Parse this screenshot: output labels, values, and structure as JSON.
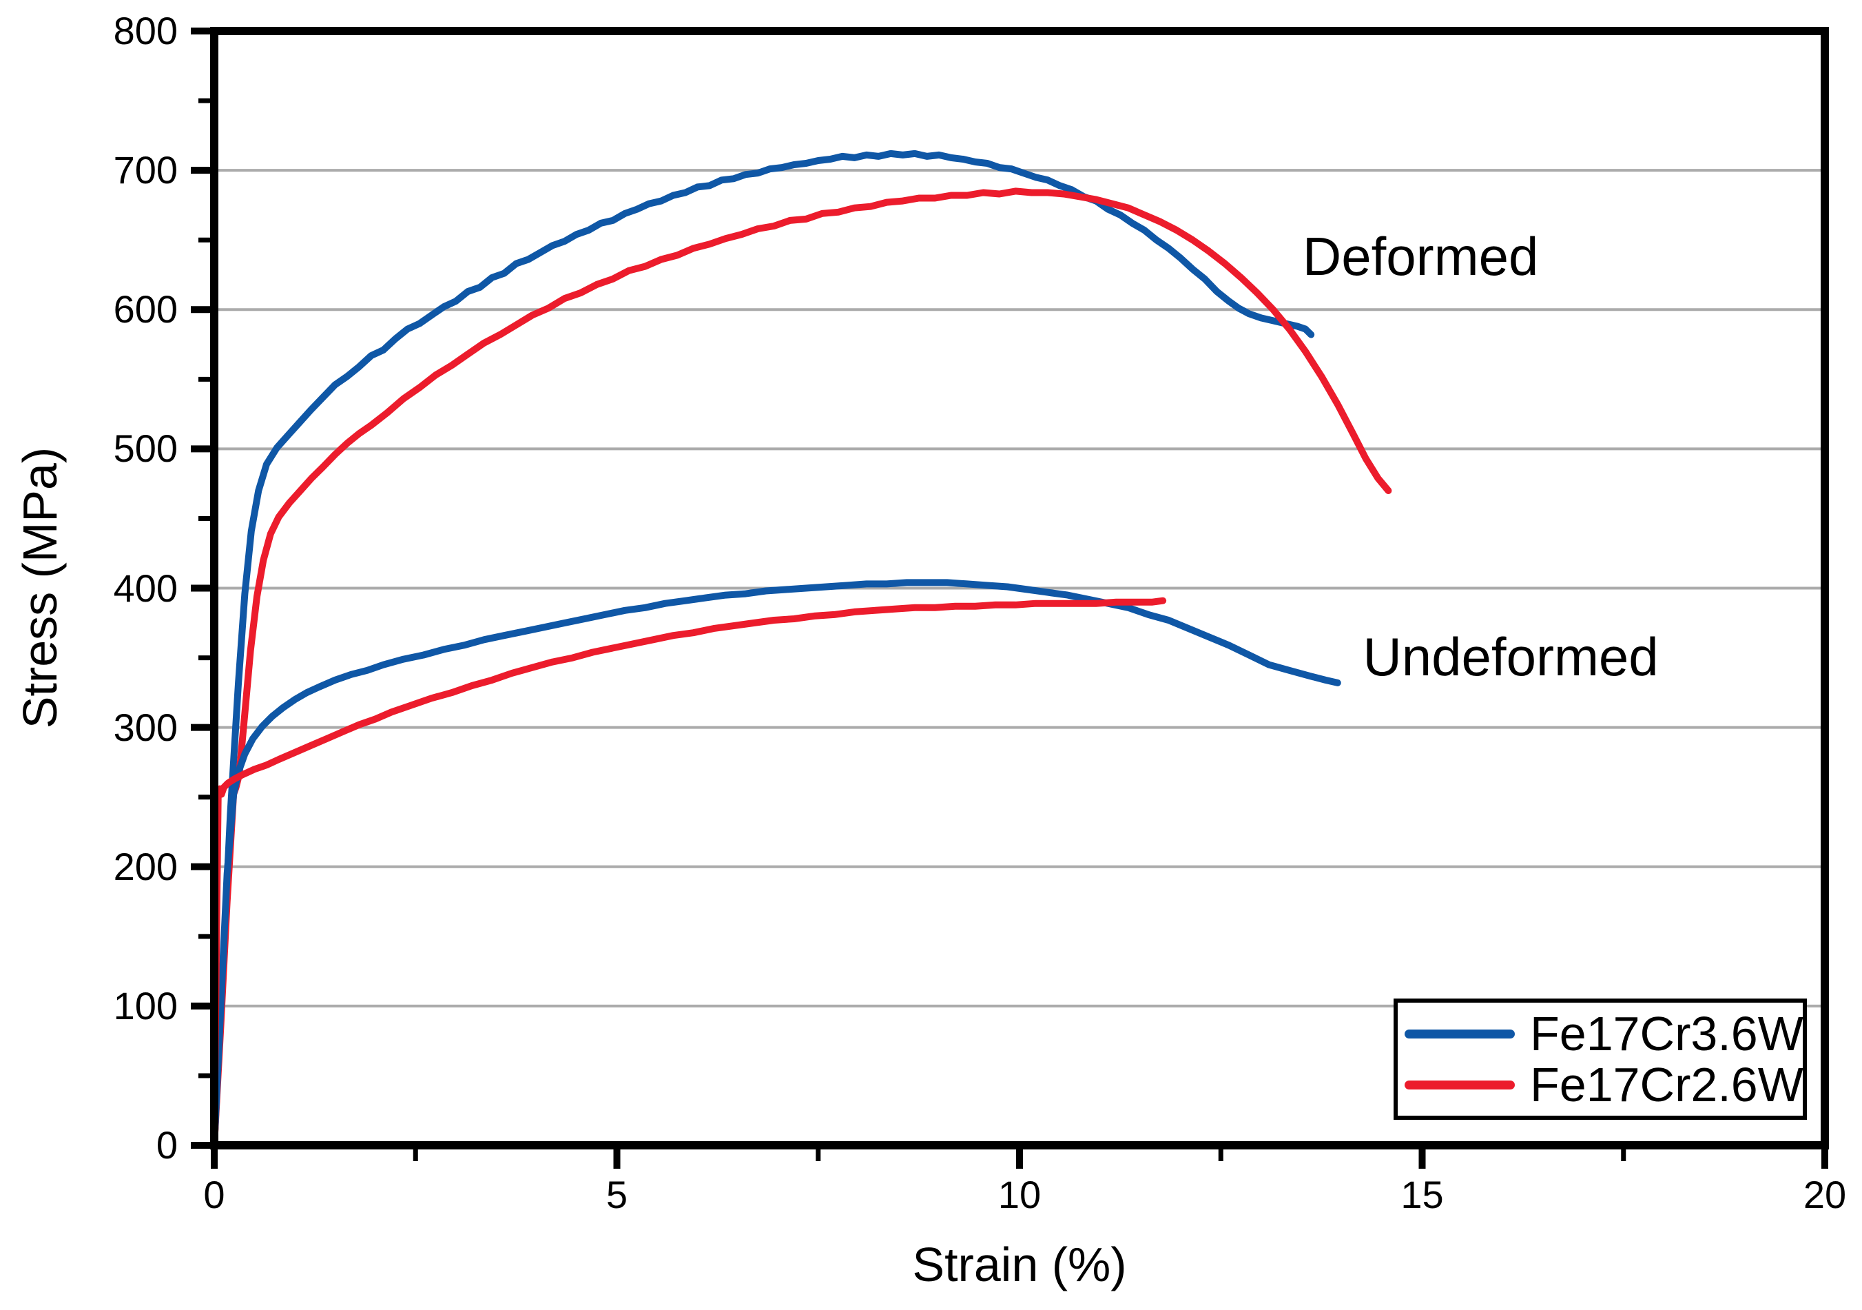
{
  "chart_data": {
    "type": "line",
    "title": "",
    "xlabel": "Strain (%)",
    "ylabel": "Stress (MPa)",
    "xlim": [
      0,
      20
    ],
    "ylim": [
      0,
      800
    ],
    "xticks": [
      0,
      5,
      10,
      15,
      20
    ],
    "yticks": [
      0,
      100,
      200,
      300,
      400,
      500,
      600,
      700,
      800
    ],
    "x_minor_step": 2.5,
    "y_minor_step": 50,
    "grid": "horizontal-only",
    "grid_color": "#ABABAB",
    "axis_color": "#000000",
    "background_color": "#FFFFFF",
    "legend": {
      "position": "bottom-right",
      "entries": [
        "Fe17Cr3.6W",
        "Fe17Cr2.6W"
      ]
    },
    "annotations": [
      {
        "text": "Deformed",
        "x": 14.98,
        "y": 638
      },
      {
        "text": "Undeformed",
        "x": 16.1,
        "y": 351
      }
    ],
    "series": [
      {
        "name": "Fe17Cr3.6W",
        "condition": "Deformed",
        "color": "#0F57A6",
        "points": [
          [
            0,
            0
          ],
          [
            0.1,
            118
          ],
          [
            0.2,
            238
          ],
          [
            0.3,
            332
          ],
          [
            0.38,
            396
          ],
          [
            0.46,
            441
          ],
          [
            0.55,
            470
          ],
          [
            0.65,
            489
          ],
          [
            0.78,
            501
          ],
          [
            0.92,
            510
          ],
          [
            1.06,
            519
          ],
          [
            1.2,
            528
          ],
          [
            1.35,
            537
          ],
          [
            1.5,
            546
          ],
          [
            1.65,
            552
          ],
          [
            1.8,
            559
          ],
          [
            1.95,
            567
          ],
          [
            2.1,
            571
          ],
          [
            2.25,
            579
          ],
          [
            2.4,
            586
          ],
          [
            2.55,
            590
          ],
          [
            2.7,
            596
          ],
          [
            2.85,
            602
          ],
          [
            3.0,
            606
          ],
          [
            3.15,
            613
          ],
          [
            3.3,
            616
          ],
          [
            3.45,
            623
          ],
          [
            3.6,
            626
          ],
          [
            3.75,
            633
          ],
          [
            3.9,
            636
          ],
          [
            4.05,
            641
          ],
          [
            4.2,
            646
          ],
          [
            4.35,
            649
          ],
          [
            4.5,
            654
          ],
          [
            4.65,
            657
          ],
          [
            4.8,
            662
          ],
          [
            4.95,
            664
          ],
          [
            5.1,
            669
          ],
          [
            5.25,
            672
          ],
          [
            5.4,
            676
          ],
          [
            5.55,
            678
          ],
          [
            5.7,
            682
          ],
          [
            5.85,
            684
          ],
          [
            6.0,
            688
          ],
          [
            6.15,
            689
          ],
          [
            6.3,
            693
          ],
          [
            6.45,
            694
          ],
          [
            6.6,
            697
          ],
          [
            6.75,
            698
          ],
          [
            6.9,
            701
          ],
          [
            7.05,
            702
          ],
          [
            7.2,
            704
          ],
          [
            7.35,
            705
          ],
          [
            7.5,
            707
          ],
          [
            7.65,
            708
          ],
          [
            7.8,
            710
          ],
          [
            7.95,
            709
          ],
          [
            8.1,
            711
          ],
          [
            8.25,
            710
          ],
          [
            8.4,
            712
          ],
          [
            8.55,
            711
          ],
          [
            8.7,
            712
          ],
          [
            8.85,
            710
          ],
          [
            9.0,
            711
          ],
          [
            9.15,
            709
          ],
          [
            9.3,
            708
          ],
          [
            9.45,
            706
          ],
          [
            9.6,
            705
          ],
          [
            9.75,
            702
          ],
          [
            9.9,
            701
          ],
          [
            10.05,
            698
          ],
          [
            10.2,
            695
          ],
          [
            10.35,
            693
          ],
          [
            10.5,
            689
          ],
          [
            10.65,
            686
          ],
          [
            10.8,
            681
          ],
          [
            10.95,
            678
          ],
          [
            11.1,
            672
          ],
          [
            11.25,
            668
          ],
          [
            11.4,
            662
          ],
          [
            11.55,
            657
          ],
          [
            11.7,
            650
          ],
          [
            11.85,
            644
          ],
          [
            12.0,
            637
          ],
          [
            12.15,
            629
          ],
          [
            12.3,
            622
          ],
          [
            12.45,
            613
          ],
          [
            12.6,
            606
          ],
          [
            12.72,
            601
          ],
          [
            12.85,
            597
          ],
          [
            13.0,
            594
          ],
          [
            13.15,
            592
          ],
          [
            13.3,
            590
          ],
          [
            13.45,
            588
          ],
          [
            13.55,
            586
          ],
          [
            13.62,
            582
          ]
        ]
      },
      {
        "name": "Fe17Cr2.6W",
        "condition": "Deformed",
        "color": "#EC1C2C",
        "points": [
          [
            0,
            0
          ],
          [
            0.08,
            85
          ],
          [
            0.16,
            175
          ],
          [
            0.24,
            252
          ],
          [
            0.27,
            257
          ],
          [
            0.31,
            266
          ],
          [
            0.38,
            310
          ],
          [
            0.45,
            355
          ],
          [
            0.53,
            394
          ],
          [
            0.61,
            420
          ],
          [
            0.7,
            439
          ],
          [
            0.8,
            451
          ],
          [
            0.93,
            461
          ],
          [
            1.07,
            470
          ],
          [
            1.21,
            479
          ],
          [
            1.35,
            487
          ],
          [
            1.5,
            496
          ],
          [
            1.65,
            504
          ],
          [
            1.8,
            511
          ],
          [
            1.95,
            517
          ],
          [
            2.15,
            526
          ],
          [
            2.35,
            536
          ],
          [
            2.55,
            544
          ],
          [
            2.75,
            553
          ],
          [
            2.95,
            560
          ],
          [
            3.15,
            568
          ],
          [
            3.35,
            576
          ],
          [
            3.55,
            582
          ],
          [
            3.75,
            589
          ],
          [
            3.95,
            596
          ],
          [
            4.15,
            601
          ],
          [
            4.35,
            608
          ],
          [
            4.55,
            612
          ],
          [
            4.75,
            618
          ],
          [
            4.95,
            622
          ],
          [
            5.15,
            628
          ],
          [
            5.35,
            631
          ],
          [
            5.55,
            636
          ],
          [
            5.75,
            639
          ],
          [
            5.95,
            644
          ],
          [
            6.15,
            647
          ],
          [
            6.35,
            651
          ],
          [
            6.55,
            654
          ],
          [
            6.75,
            658
          ],
          [
            6.95,
            660
          ],
          [
            7.15,
            664
          ],
          [
            7.35,
            665
          ],
          [
            7.55,
            669
          ],
          [
            7.75,
            670
          ],
          [
            7.95,
            673
          ],
          [
            8.15,
            674
          ],
          [
            8.35,
            677
          ],
          [
            8.55,
            678
          ],
          [
            8.75,
            680
          ],
          [
            8.95,
            680
          ],
          [
            9.15,
            682
          ],
          [
            9.35,
            682
          ],
          [
            9.55,
            684
          ],
          [
            9.75,
            683
          ],
          [
            9.95,
            685
          ],
          [
            10.15,
            684
          ],
          [
            10.35,
            684
          ],
          [
            10.55,
            683
          ],
          [
            10.75,
            681
          ],
          [
            10.95,
            679
          ],
          [
            11.15,
            676
          ],
          [
            11.35,
            673
          ],
          [
            11.55,
            668
          ],
          [
            11.75,
            663
          ],
          [
            11.95,
            657
          ],
          [
            12.15,
            650
          ],
          [
            12.35,
            642
          ],
          [
            12.55,
            633
          ],
          [
            12.75,
            623
          ],
          [
            12.95,
            612
          ],
          [
            13.15,
            600
          ],
          [
            13.35,
            586
          ],
          [
            13.55,
            570
          ],
          [
            13.75,
            552
          ],
          [
            13.95,
            532
          ],
          [
            14.15,
            510
          ],
          [
            14.3,
            493
          ],
          [
            14.45,
            479
          ],
          [
            14.58,
            470
          ]
        ]
      },
      {
        "name": "Fe17Cr3.6W",
        "condition": "Undeformed",
        "color": "#0F57A6",
        "points": [
          [
            0,
            0
          ],
          [
            0.08,
            98
          ],
          [
            0.16,
            195
          ],
          [
            0.24,
            252
          ],
          [
            0.3,
            268
          ],
          [
            0.38,
            281
          ],
          [
            0.48,
            292
          ],
          [
            0.6,
            301
          ],
          [
            0.72,
            308
          ],
          [
            0.85,
            314
          ],
          [
            1.0,
            320
          ],
          [
            1.15,
            325
          ],
          [
            1.3,
            329
          ],
          [
            1.5,
            334
          ],
          [
            1.7,
            338
          ],
          [
            1.9,
            341
          ],
          [
            2.1,
            345
          ],
          [
            2.35,
            349
          ],
          [
            2.6,
            352
          ],
          [
            2.85,
            356
          ],
          [
            3.1,
            359
          ],
          [
            3.35,
            363
          ],
          [
            3.6,
            366
          ],
          [
            3.85,
            369
          ],
          [
            4.1,
            372
          ],
          [
            4.35,
            375
          ],
          [
            4.6,
            378
          ],
          [
            4.85,
            381
          ],
          [
            5.1,
            384
          ],
          [
            5.35,
            386
          ],
          [
            5.6,
            389
          ],
          [
            5.85,
            391
          ],
          [
            6.1,
            393
          ],
          [
            6.35,
            395
          ],
          [
            6.6,
            396
          ],
          [
            6.85,
            398
          ],
          [
            7.1,
            399
          ],
          [
            7.35,
            400
          ],
          [
            7.6,
            401
          ],
          [
            7.85,
            402
          ],
          [
            8.1,
            403
          ],
          [
            8.35,
            403
          ],
          [
            8.6,
            404
          ],
          [
            8.85,
            404
          ],
          [
            9.1,
            404
          ],
          [
            9.35,
            403
          ],
          [
            9.6,
            402
          ],
          [
            9.85,
            401
          ],
          [
            10.1,
            399
          ],
          [
            10.35,
            397
          ],
          [
            10.6,
            395
          ],
          [
            10.85,
            392
          ],
          [
            11.1,
            389
          ],
          [
            11.35,
            386
          ],
          [
            11.6,
            381
          ],
          [
            11.85,
            377
          ],
          [
            12.1,
            371
          ],
          [
            12.35,
            365
          ],
          [
            12.6,
            359
          ],
          [
            12.85,
            352
          ],
          [
            13.1,
            345
          ],
          [
            13.35,
            341
          ],
          [
            13.6,
            337
          ],
          [
            13.8,
            334
          ],
          [
            13.95,
            332
          ]
        ]
      },
      {
        "name": "Fe17Cr2.6W",
        "condition": "Undeformed",
        "color": "#EC1C2C",
        "points": [
          [
            0,
            0
          ],
          [
            0.03,
            160
          ],
          [
            0.05,
            254
          ],
          [
            0.07,
            256
          ],
          [
            0.09,
            252
          ],
          [
            0.12,
            257
          ],
          [
            0.17,
            260
          ],
          [
            0.25,
            263
          ],
          [
            0.35,
            266
          ],
          [
            0.5,
            270
          ],
          [
            0.65,
            273
          ],
          [
            0.8,
            277
          ],
          [
            1.0,
            282
          ],
          [
            1.2,
            287
          ],
          [
            1.4,
            292
          ],
          [
            1.6,
            297
          ],
          [
            1.8,
            302
          ],
          [
            2.0,
            306
          ],
          [
            2.2,
            311
          ],
          [
            2.45,
            316
          ],
          [
            2.7,
            321
          ],
          [
            2.95,
            325
          ],
          [
            3.2,
            330
          ],
          [
            3.45,
            334
          ],
          [
            3.7,
            339
          ],
          [
            3.95,
            343
          ],
          [
            4.2,
            347
          ],
          [
            4.45,
            350
          ],
          [
            4.7,
            354
          ],
          [
            4.95,
            357
          ],
          [
            5.2,
            360
          ],
          [
            5.45,
            363
          ],
          [
            5.7,
            366
          ],
          [
            5.95,
            368
          ],
          [
            6.2,
            371
          ],
          [
            6.45,
            373
          ],
          [
            6.7,
            375
          ],
          [
            6.95,
            377
          ],
          [
            7.2,
            378
          ],
          [
            7.45,
            380
          ],
          [
            7.7,
            381
          ],
          [
            7.95,
            383
          ],
          [
            8.2,
            384
          ],
          [
            8.45,
            385
          ],
          [
            8.7,
            386
          ],
          [
            8.95,
            386
          ],
          [
            9.2,
            387
          ],
          [
            9.45,
            387
          ],
          [
            9.7,
            388
          ],
          [
            9.95,
            388
          ],
          [
            10.2,
            389
          ],
          [
            10.45,
            389
          ],
          [
            10.7,
            389
          ],
          [
            10.95,
            389
          ],
          [
            11.2,
            390
          ],
          [
            11.45,
            390
          ],
          [
            11.65,
            390
          ],
          [
            11.78,
            391
          ]
        ]
      }
    ]
  }
}
